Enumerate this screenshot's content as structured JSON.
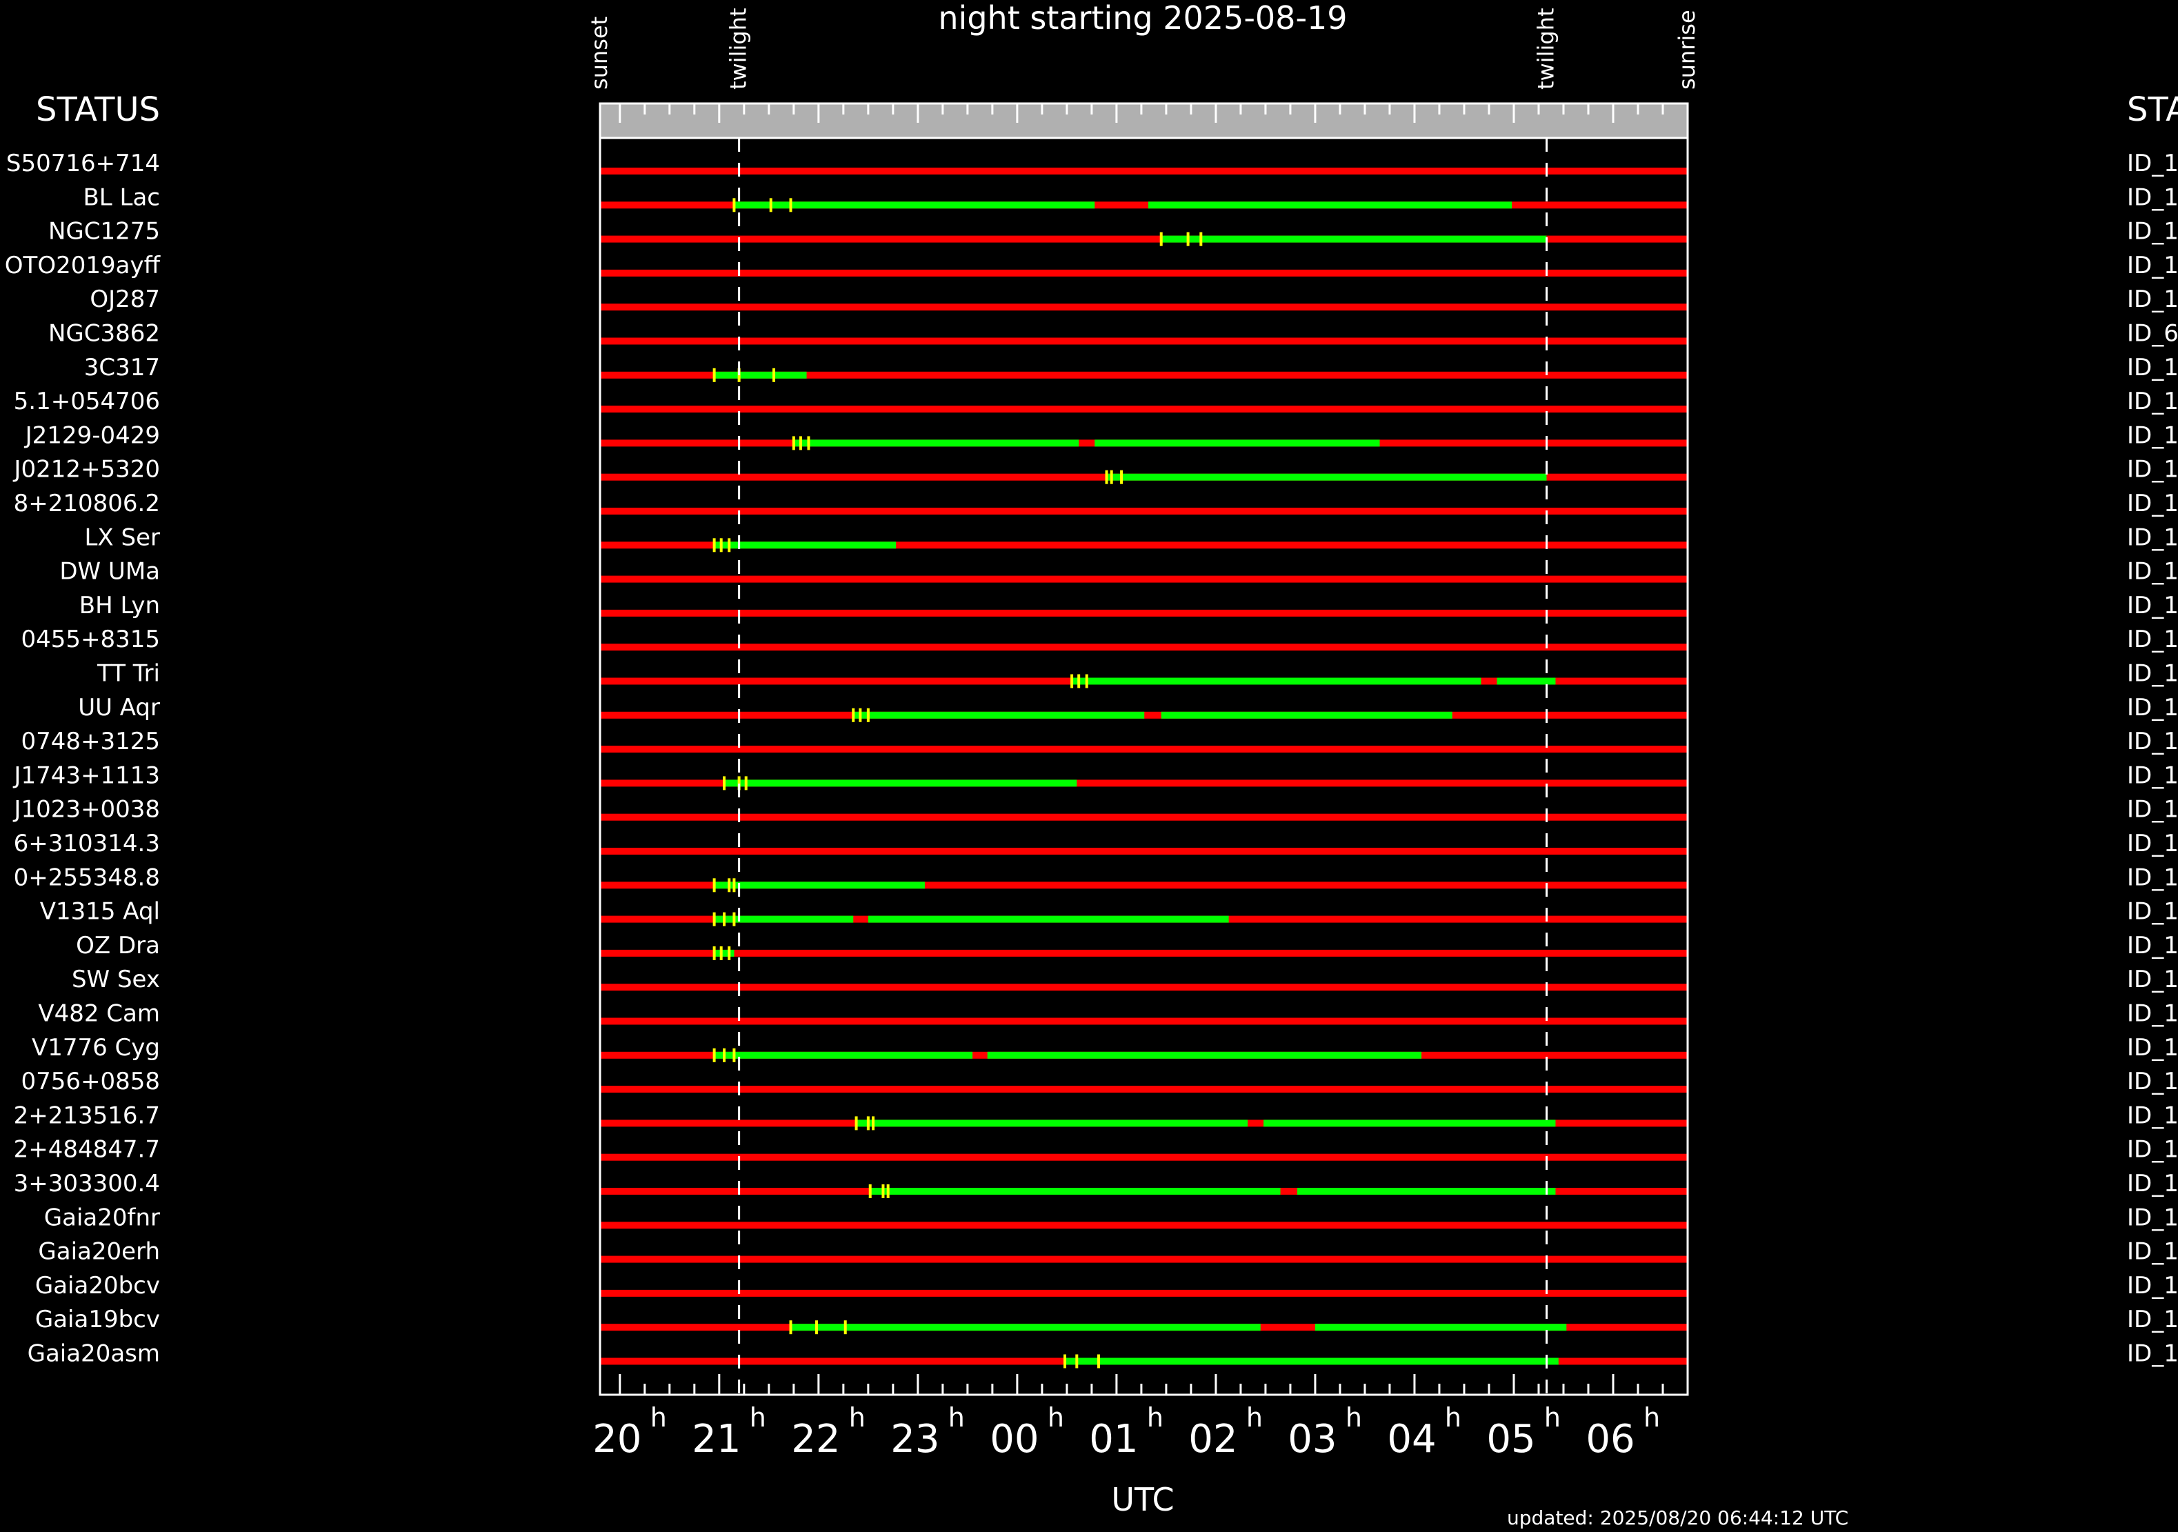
{
  "chart_data": {
    "type": "timeline",
    "title": "night starting 2025-08-19",
    "xlabel": "UTC",
    "status_label_left": "STATUS",
    "status_label_right": "STA",
    "updated": "updated: 2025/08/20 06:44:12 UTC",
    "xlim": [
      19.8,
      30.75
    ],
    "hour_ticks": [
      {
        "value": 20,
        "label": "20",
        "sup": "h"
      },
      {
        "value": 21,
        "label": "21",
        "sup": "h"
      },
      {
        "value": 22,
        "label": "22",
        "sup": "h"
      },
      {
        "value": 23,
        "label": "23",
        "sup": "h"
      },
      {
        "value": 24,
        "label": "00",
        "sup": "h"
      },
      {
        "value": 25,
        "label": "01",
        "sup": "h"
      },
      {
        "value": 26,
        "label": "02",
        "sup": "h"
      },
      {
        "value": 27,
        "label": "03",
        "sup": "h"
      },
      {
        "value": 28,
        "label": "04",
        "sup": "h"
      },
      {
        "value": 29,
        "label": "05",
        "sup": "h"
      },
      {
        "value": 30,
        "label": "06",
        "sup": "h"
      }
    ],
    "events": [
      {
        "label": "sunset",
        "time": 19.8,
        "dashed": false
      },
      {
        "label": "twilight",
        "time": 21.2,
        "dashed": true
      },
      {
        "label": "twilight",
        "time": 29.33,
        "dashed": true
      },
      {
        "label": "sunrise",
        "time": 30.75,
        "dashed": false
      }
    ],
    "colors": {
      "not_visible": "#ff0000",
      "observable": "#00ff00",
      "marker": "#ffff00",
      "header_band": "#b0b0b0",
      "background": "#000000",
      "text": "#ffffff"
    },
    "targets": [
      {
        "name": "S50716+714",
        "id": "ID_1",
        "green": [],
        "marks": []
      },
      {
        "name": "BL Lac",
        "id": "ID_1",
        "green": [
          [
            21.15,
            24.78
          ],
          [
            25.32,
            28.98
          ]
        ],
        "marks": [
          21.15,
          21.52,
          21.72
        ]
      },
      {
        "name": "NGC1275",
        "id": "ID_1",
        "green": [
          [
            25.45,
            29.33
          ]
        ],
        "marks": [
          25.45,
          25.72,
          25.85
        ]
      },
      {
        "name": "OTO2019ayff",
        "id": "ID_1",
        "green": [],
        "marks": []
      },
      {
        "name": "OJ287",
        "id": "ID_1",
        "green": [],
        "marks": []
      },
      {
        "name": "NGC3862",
        "id": "ID_6",
        "green": [],
        "marks": []
      },
      {
        "name": "3C317",
        "id": "ID_1",
        "green": [
          [
            20.95,
            21.88
          ]
        ],
        "marks": [
          20.95,
          21.2,
          21.55
        ]
      },
      {
        "name": "5.1+054706",
        "id": "ID_1",
        "green": [],
        "marks": []
      },
      {
        "name": "J2129-0429",
        "id": "ID_1",
        "green": [
          [
            21.75,
            24.62
          ],
          [
            24.78,
            27.65
          ]
        ],
        "marks": [
          21.75,
          21.82,
          21.9
        ]
      },
      {
        "name": "J0212+5320",
        "id": "ID_1",
        "green": [
          [
            24.9,
            29.33
          ]
        ],
        "marks": [
          24.9,
          24.95,
          25.05
        ]
      },
      {
        "name": "8+210806.2",
        "id": "ID_1",
        "green": [],
        "marks": []
      },
      {
        "name": "LX Ser",
        "id": "ID_1",
        "green": [
          [
            20.95,
            22.78
          ]
        ],
        "marks": [
          20.95,
          21.02,
          21.1
        ]
      },
      {
        "name": "DW UMa",
        "id": "ID_1",
        "green": [],
        "marks": []
      },
      {
        "name": "BH Lyn",
        "id": "ID_1",
        "green": [],
        "marks": []
      },
      {
        "name": "0455+8315",
        "id": "ID_1",
        "green": [],
        "marks": []
      },
      {
        "name": "TT Tri",
        "id": "ID_1",
        "green": [
          [
            24.55,
            28.67
          ],
          [
            28.83,
            29.42
          ]
        ],
        "marks": [
          24.55,
          24.62,
          24.7
        ]
      },
      {
        "name": "UU Aqr",
        "id": "ID_1",
        "green": [
          [
            22.35,
            25.28
          ],
          [
            25.45,
            28.38
          ]
        ],
        "marks": [
          22.35,
          22.42,
          22.5
        ]
      },
      {
        "name": "0748+3125",
        "id": "ID_1",
        "green": [],
        "marks": []
      },
      {
        "name": "J1743+1113",
        "id": "ID_1",
        "green": [
          [
            21.05,
            24.6
          ]
        ],
        "marks": [
          21.05,
          21.2,
          21.27
        ]
      },
      {
        "name": "J1023+0038",
        "id": "ID_1",
        "green": [],
        "marks": []
      },
      {
        "name": "6+310314.3",
        "id": "ID_1",
        "green": [],
        "marks": []
      },
      {
        "name": "0+255348.8",
        "id": "ID_1",
        "green": [
          [
            20.95,
            23.07
          ]
        ],
        "marks": [
          20.95,
          21.1,
          21.15
        ]
      },
      {
        "name": "V1315 Aql",
        "id": "ID_1",
        "green": [
          [
            20.95,
            22.35
          ],
          [
            22.5,
            26.13
          ]
        ],
        "marks": [
          20.95,
          21.05,
          21.15
        ]
      },
      {
        "name": "OZ Dra",
        "id": "ID_1",
        "green": [
          [
            20.95,
            21.15
          ]
        ],
        "marks": [
          20.95,
          21.02,
          21.1
        ]
      },
      {
        "name": "SW Sex",
        "id": "ID_1",
        "green": [],
        "marks": []
      },
      {
        "name": "V482 Cam",
        "id": "ID_1",
        "green": [],
        "marks": []
      },
      {
        "name": "V1776 Cyg",
        "id": "ID_1",
        "green": [
          [
            20.95,
            23.55
          ],
          [
            23.7,
            28.07
          ]
        ],
        "marks": [
          20.95,
          21.05,
          21.15
        ]
      },
      {
        "name": "0756+0858",
        "id": "ID_1",
        "green": [],
        "marks": []
      },
      {
        "name": "2+213516.7",
        "id": "ID_1",
        "green": [
          [
            22.38,
            26.32
          ],
          [
            26.48,
            29.42
          ]
        ],
        "marks": [
          22.38,
          22.5,
          22.55
        ]
      },
      {
        "name": "2+484847.7",
        "id": "ID_1",
        "green": [],
        "marks": []
      },
      {
        "name": "3+303300.4",
        "id": "ID_1",
        "green": [
          [
            22.52,
            26.65
          ],
          [
            26.82,
            29.42
          ]
        ],
        "marks": [
          22.52,
          22.65,
          22.7
        ]
      },
      {
        "name": "Gaia20fnr",
        "id": "ID_1",
        "green": [],
        "marks": []
      },
      {
        "name": "Gaia20erh",
        "id": "ID_1",
        "green": [],
        "marks": []
      },
      {
        "name": "Gaia20bcv",
        "id": "ID_1",
        "green": [],
        "marks": []
      },
      {
        "name": "Gaia19bcv",
        "id": "ID_1",
        "green": [
          [
            21.72,
            26.45
          ],
          [
            27.0,
            29.53
          ]
        ],
        "marks": [
          21.72,
          21.98,
          22.27
        ]
      },
      {
        "name": "Gaia20asm",
        "id": "ID_1",
        "green": [
          [
            24.48,
            29.45
          ]
        ],
        "marks": [
          24.48,
          24.6,
          24.82
        ]
      }
    ]
  }
}
